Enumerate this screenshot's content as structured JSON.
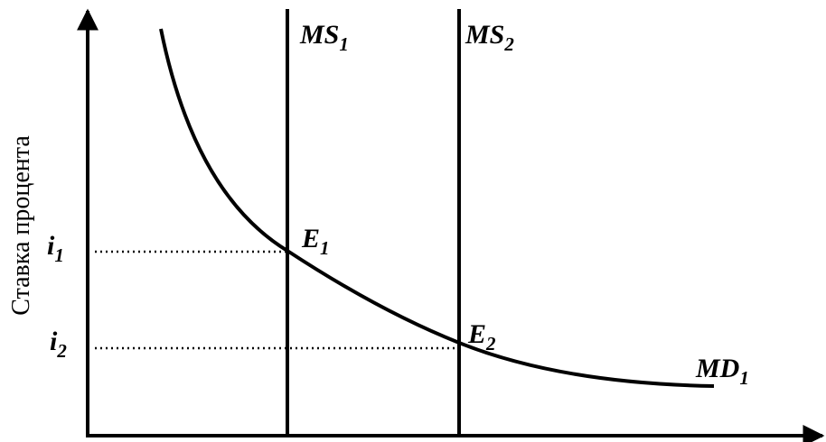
{
  "axis": {
    "y_label": "Ставка процента"
  },
  "curves": [
    {
      "main": "MS",
      "sub": "1"
    },
    {
      "main": "MS",
      "sub": "2"
    },
    {
      "main": "MD",
      "sub": "1"
    }
  ],
  "points": [
    {
      "main": "E",
      "sub": "1"
    },
    {
      "main": "E",
      "sub": "2"
    }
  ],
  "levels": [
    {
      "main": "i",
      "sub": "1"
    },
    {
      "main": "i",
      "sub": "2"
    }
  ]
}
